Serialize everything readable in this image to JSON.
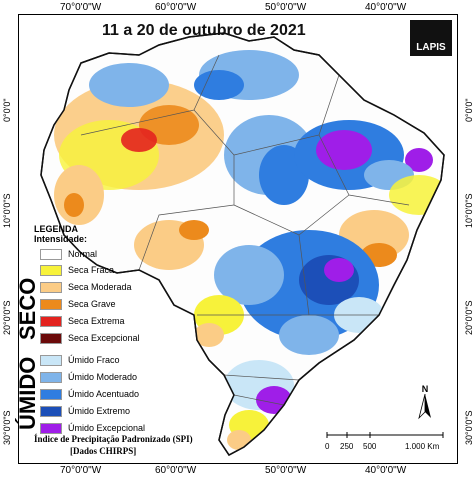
{
  "title": "11 a 20 de outubro de 2021",
  "logo_text": "LAPIS",
  "longitude_ticks": [
    "70°0'0\"W",
    "60°0'0\"W",
    "50°0'0\"W",
    "40°0'0\"W"
  ],
  "latitude_ticks": [
    "0°0'0\"",
    "10°0'0\"S",
    "20°0'0\"S",
    "30°0'0\"S"
  ],
  "legend": {
    "heading_line1": "LEGENDA",
    "heading_line2": "Intensidade:",
    "normal": "Normal",
    "seco_label": "SECO",
    "umido_label": "ÚMIDO",
    "seco": [
      {
        "label": "Seca Fraca",
        "color": "#f7f23a"
      },
      {
        "label": "Seca Moderada",
        "color": "#fbcc86"
      },
      {
        "label": "Seca Grave",
        "color": "#ec8a1c"
      },
      {
        "label": "Seca Extrema",
        "color": "#e3231f"
      },
      {
        "label": "Seca Excepcional",
        "color": "#6b0a0a"
      }
    ],
    "umido": [
      {
        "label": "Úmido Fraco",
        "color": "#c9e6f7"
      },
      {
        "label": "Úmido Moderado",
        "color": "#7fb4ea"
      },
      {
        "label": "Úmido Acentuado",
        "color": "#2f7de0"
      },
      {
        "label": "Úmido Extremo",
        "color": "#1c4fb8"
      },
      {
        "label": "Úmido Excepcional",
        "color": "#9f1ee8"
      }
    ]
  },
  "caption_line1": "Índice de Precipitação Padronizado (SPI)",
  "caption_line2": "[Dados CHIRPS]",
  "scale": {
    "ticks": [
      "0",
      "250",
      "500",
      "1.000 Km"
    ]
  },
  "north_label": "N"
}
